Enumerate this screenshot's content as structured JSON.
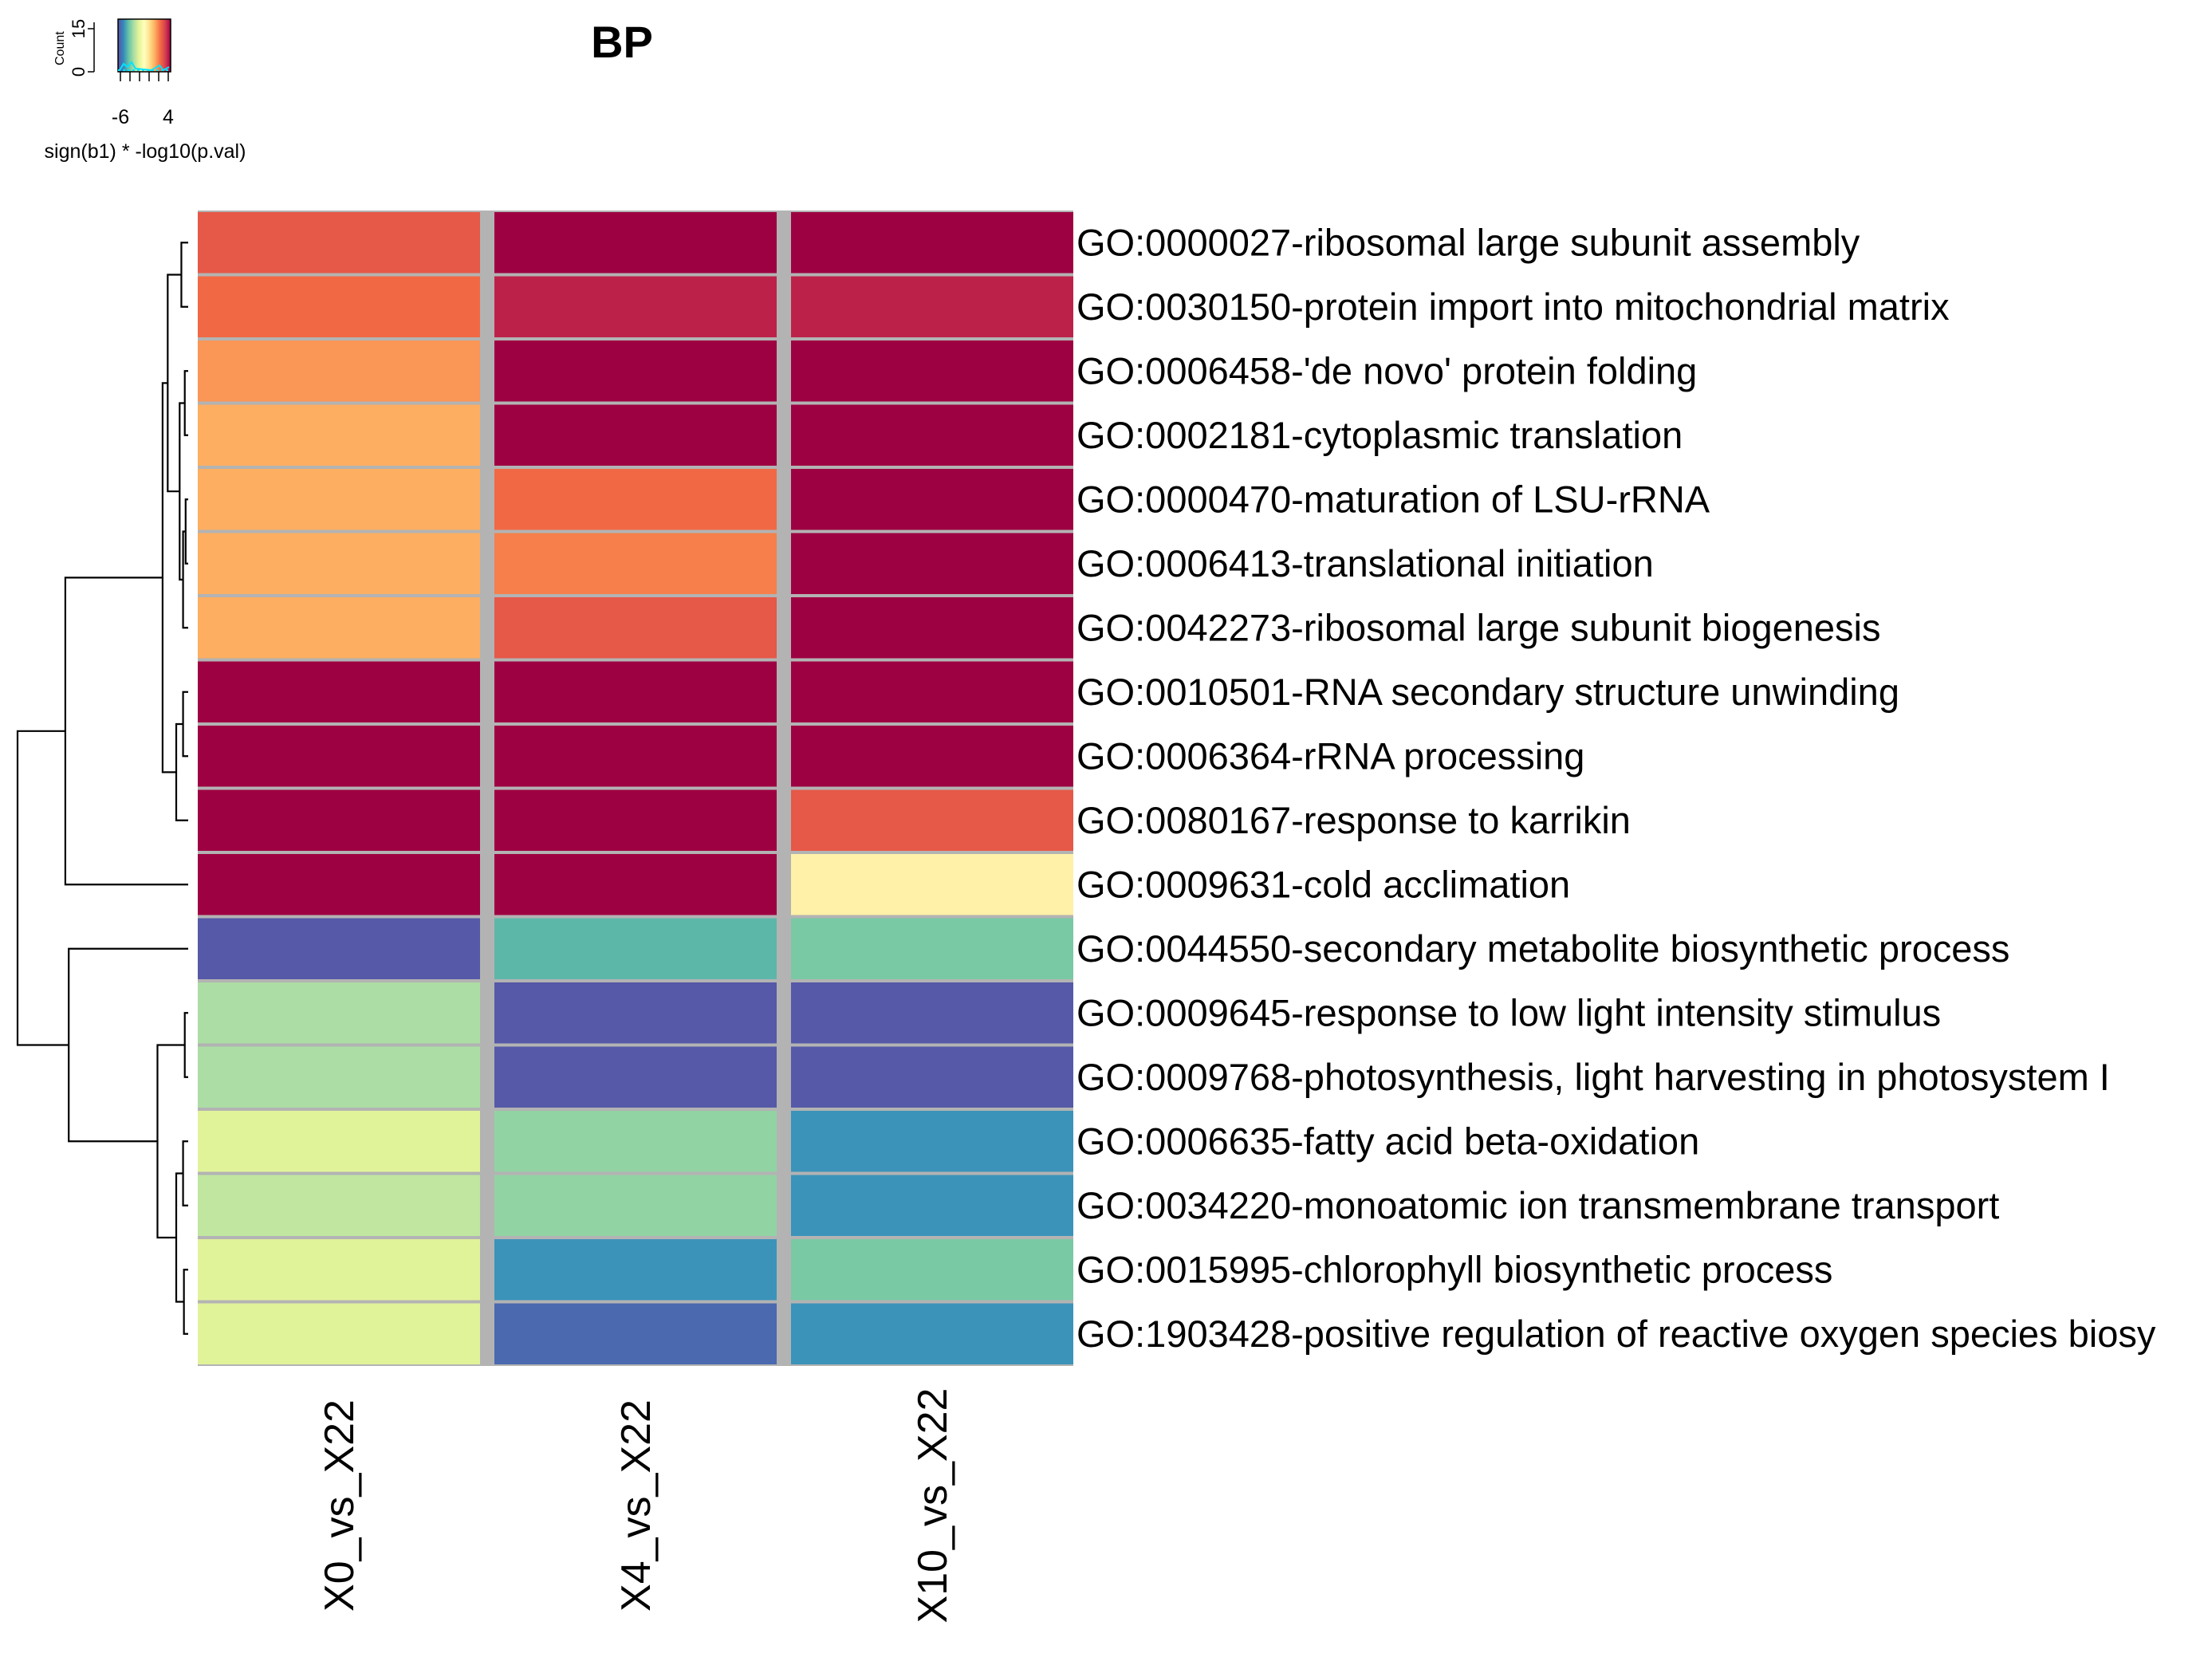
{
  "chart_data": {
    "type": "heatmap",
    "title": "BP",
    "columns": [
      "X0_vs_X22",
      "X4_vs_X22",
      "X10_vs_X22"
    ],
    "rows": [
      "GO:0000027-ribosomal large subunit assembly",
      "GO:0030150-protein import into mitochondrial matrix",
      "GO:0006458-'de novo' protein folding",
      "GO:0002181-cytoplasmic translation",
      "GO:0000470-maturation of LSU-rRNA",
      "GO:0006413-translational initiation",
      "GO:0042273-ribosomal large subunit biogenesis",
      "GO:0010501-RNA secondary structure unwinding",
      "GO:0006364-rRNA processing",
      "GO:0080167-response to karrikin",
      "GO:0009631-cold acclimation",
      "GO:0044550-secondary metabolite biosynthetic process",
      "GO:0009645-response to low light intensity stimulus",
      "GO:0009768-photosynthesis, light harvesting in photosystem I",
      "GO:0006635-fatty acid beta-oxidation",
      "GO:0034220-monoatomic ion transmembrane transport",
      "GO:0015995-chlorophyll biosynthetic process",
      "GO:1903428-positive regulation of reactive oxygen species biosy"
    ],
    "values": [
      [
        2.8,
        4.5,
        4.5
      ],
      [
        2.4,
        3.9,
        3.9
      ],
      [
        1.6,
        4.5,
        4.5
      ],
      [
        1.2,
        4.5,
        4.5
      ],
      [
        1.2,
        2.4,
        4.5
      ],
      [
        1.2,
        2.0,
        4.5
      ],
      [
        1.2,
        2.8,
        4.5
      ],
      [
        4.5,
        4.5,
        4.5
      ],
      [
        4.5,
        4.5,
        4.5
      ],
      [
        4.5,
        4.5,
        2.8
      ],
      [
        4.5,
        4.5,
        -0.5
      ],
      [
        -6.3,
        -4.5,
        -4.0
      ],
      [
        -3.2,
        -6.3,
        -6.3
      ],
      [
        -3.2,
        -6.3,
        -6.3
      ],
      [
        -2.2,
        -3.6,
        -5.2
      ],
      [
        -2.8,
        -3.6,
        -5.2
      ],
      [
        -2.2,
        -5.2,
        -4.0
      ],
      [
        -2.2,
        -6.0,
        -5.2
      ]
    ],
    "color_range": [
      -6.5,
      4.5
    ],
    "colorscale": [
      "#5e4fa2",
      "#3288bd",
      "#66c2a5",
      "#abdda4",
      "#e6f598",
      "#ffffbf",
      "#fee08b",
      "#fdae61",
      "#f46d43",
      "#d53e4f",
      "#9e0142"
    ],
    "legend": {
      "title": "sign(b1) * -log10(p.val)",
      "ticks": [
        "-6",
        "4"
      ],
      "tick_values": [
        -6,
        4
      ],
      "count_label": "Count",
      "count_ticks": [
        "0",
        "15"
      ],
      "histogram_color": "#00e5ff",
      "position": "top-left"
    },
    "gap_color": "#b3b3b3"
  }
}
